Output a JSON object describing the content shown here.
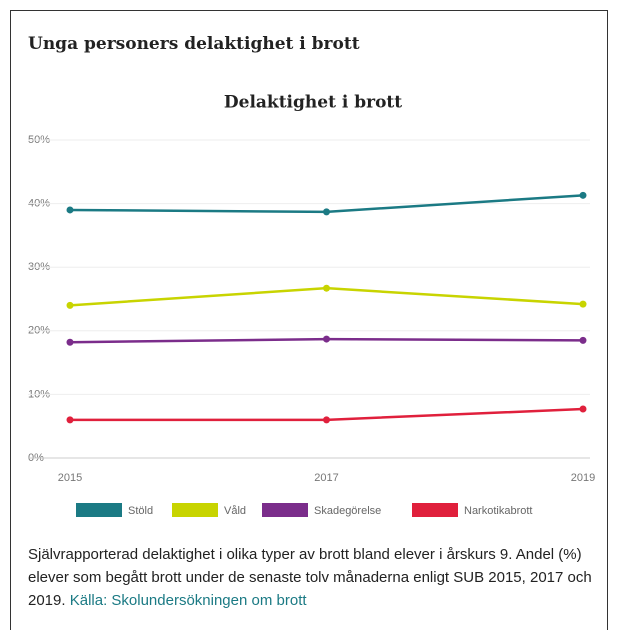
{
  "header": {
    "title": "Unga personers delaktighet i brott"
  },
  "chart_data": {
    "type": "line",
    "title": "Delaktighet i brott",
    "categories": [
      "2015",
      "2017",
      "2019"
    ],
    "series": [
      {
        "name": "Stöld",
        "color": "#1b7a84",
        "values": [
          39,
          38.7,
          41.3
        ]
      },
      {
        "name": "Våld",
        "color": "#c8d400",
        "values": [
          24,
          26.7,
          24.2
        ]
      },
      {
        "name": "Skadegörelse",
        "color": "#7b2d8b",
        "values": [
          18.2,
          18.7,
          18.5
        ]
      },
      {
        "name": "Narkotikabrott",
        "color": "#e0203c",
        "values": [
          6,
          6,
          7.7
        ]
      }
    ],
    "ylim": [
      0,
      50
    ],
    "yticks": [
      {
        "value": 0,
        "label": "0%"
      },
      {
        "value": 10,
        "label": "10%"
      },
      {
        "value": 20,
        "label": "20%"
      },
      {
        "value": 30,
        "label": "30%"
      },
      {
        "value": 40,
        "label": "40%"
      },
      {
        "value": 50,
        "label": "50%"
      }
    ],
    "grid": true
  },
  "footer": {
    "text": "Självrapporterad delaktighet i olika typer av brott bland elever i årskurs 9. Andel (%) elever som begått brott under de senaste tolv månaderna enligt SUB 2015, 2017 och 2019.",
    "link": "Källa: Skolundersökningen om brott"
  }
}
